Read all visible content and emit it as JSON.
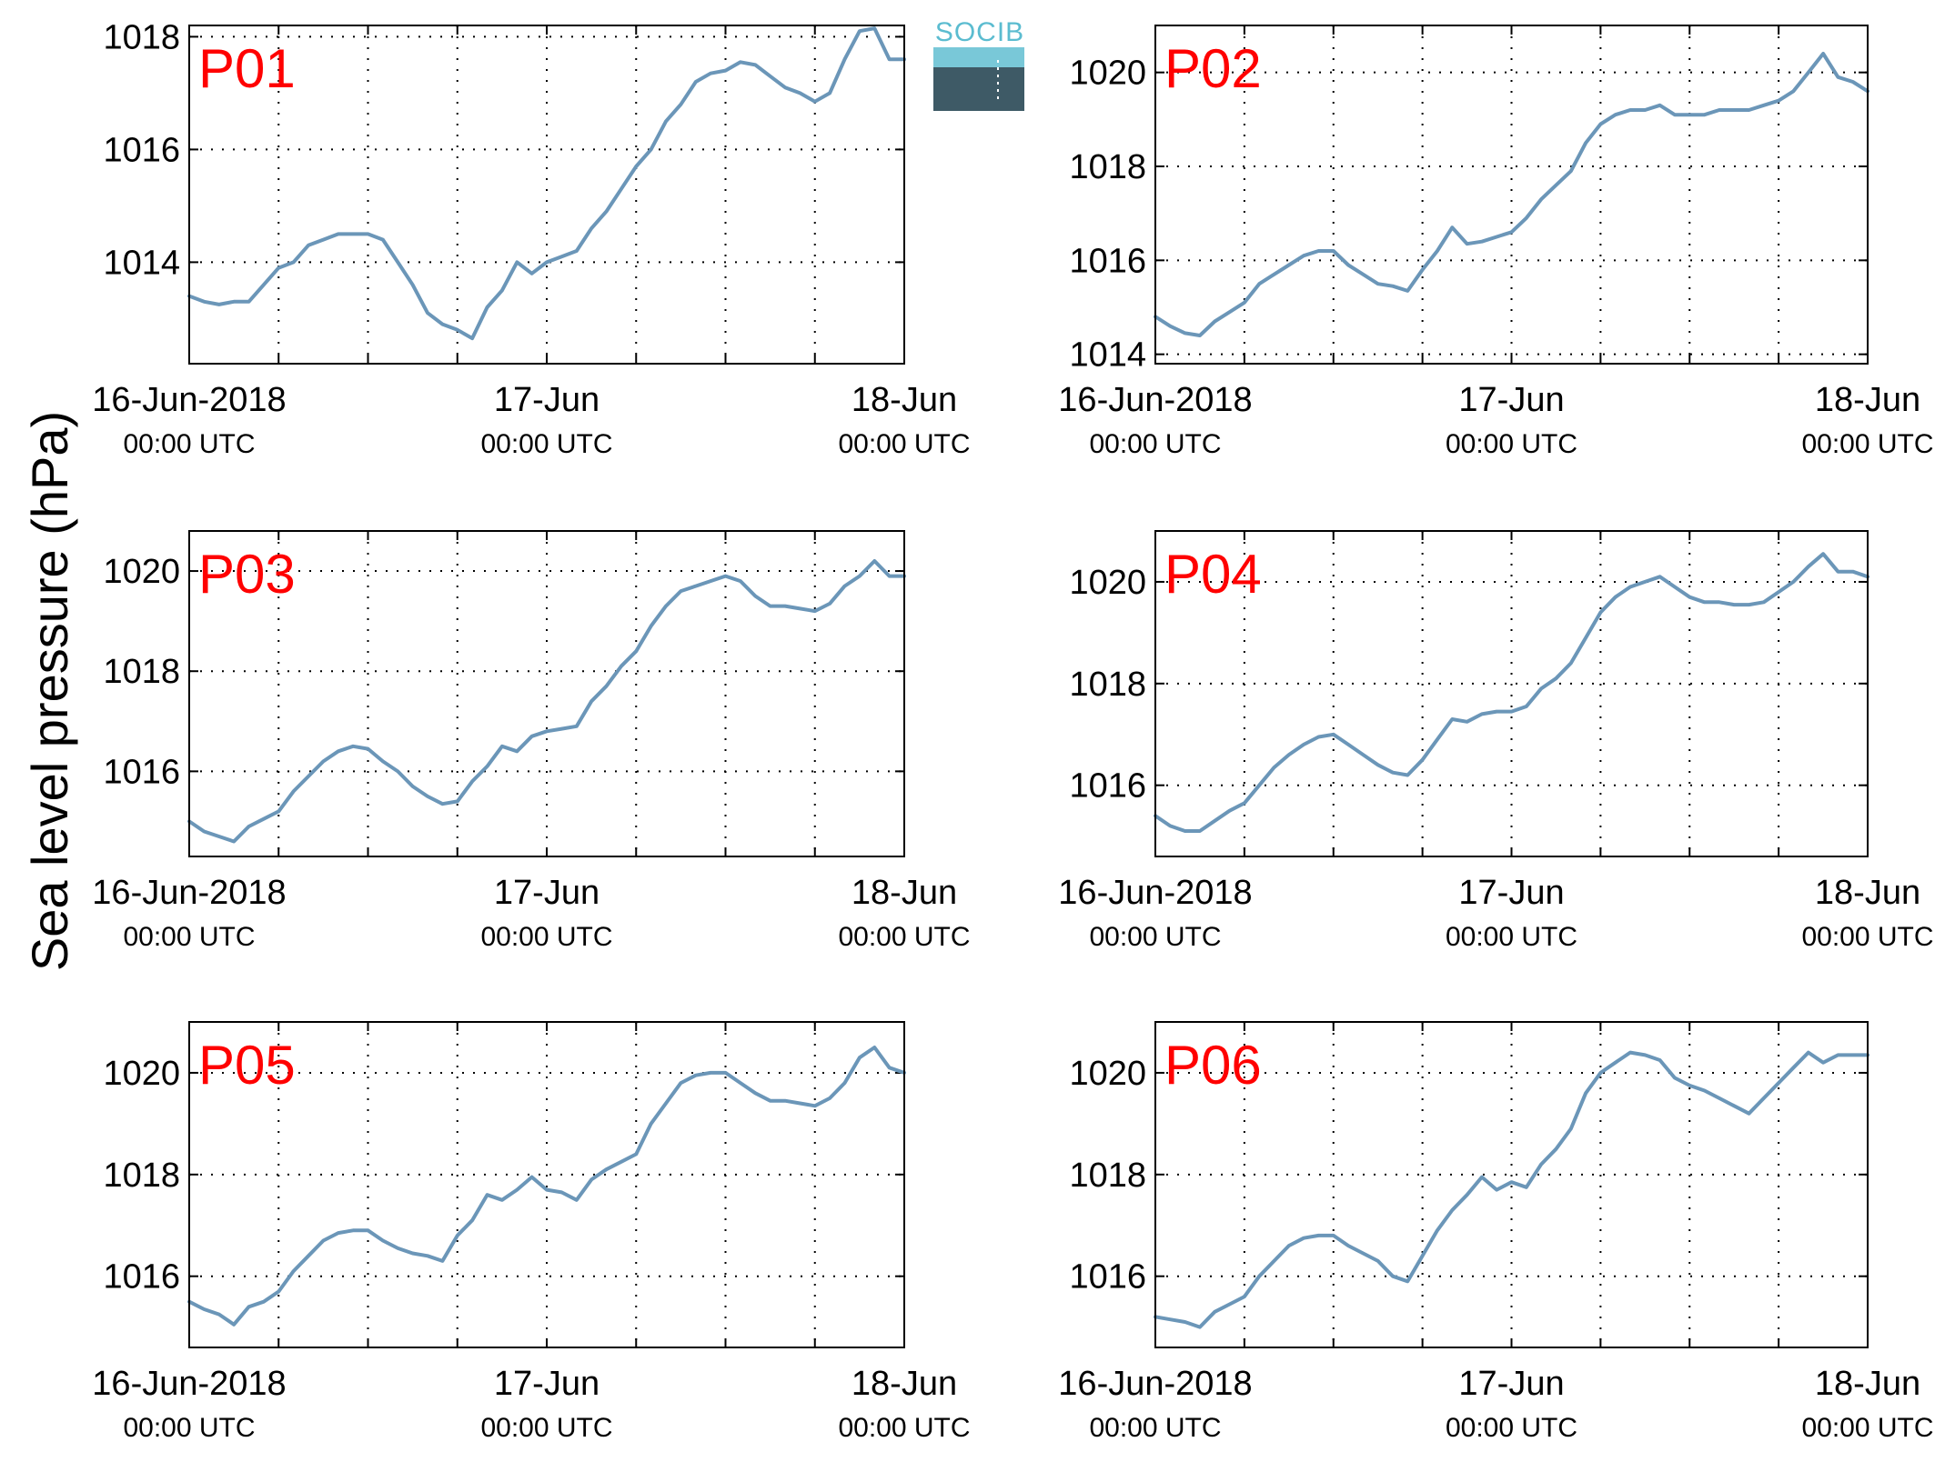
{
  "figure": {
    "ylabel": "Sea level pressure (hPa)",
    "logo_text": "SOCIB",
    "colors": {
      "series": "#6b96b8",
      "title": "#ff0000",
      "logo_text": "#5bbcd0"
    }
  },
  "chart_data": [
    {
      "type": "line",
      "title": "P01",
      "x_axis": {
        "range": [
          "2018-06-16 00:00",
          "2018-06-18 00:00"
        ],
        "tick_labels": [
          [
            "16-Jun-2018",
            "00:00 UTC"
          ],
          [
            "17-Jun",
            "00:00 UTC"
          ],
          [
            "18-Jun",
            "00:00 UTC"
          ]
        ],
        "grid_every_hours": 6
      },
      "y_axis": {
        "ylim": [
          1012.2,
          1018.2
        ],
        "ticks": [
          1014,
          1016,
          1018
        ],
        "grid": true
      },
      "series": [
        {
          "x_hours": [
            0,
            1,
            2,
            3,
            4,
            5,
            6,
            7,
            8,
            9,
            10,
            11,
            12,
            13,
            14,
            15,
            16,
            17,
            18,
            19,
            20,
            21,
            22,
            23,
            24,
            25,
            26,
            27,
            28,
            29,
            30,
            31,
            32,
            33,
            34,
            35,
            36,
            37,
            38,
            39,
            40,
            41,
            42,
            43,
            44,
            45,
            46,
            47,
            48
          ],
          "values": [
            1013.4,
            1013.3,
            1013.25,
            1013.3,
            1013.3,
            1013.6,
            1013.9,
            1014.0,
            1014.3,
            1014.4,
            1014.5,
            1014.5,
            1014.5,
            1014.4,
            1014.0,
            1013.6,
            1013.1,
            1012.9,
            1012.8,
            1012.65,
            1013.2,
            1013.5,
            1014.0,
            1013.8,
            1014.0,
            1014.1,
            1014.2,
            1014.6,
            1014.9,
            1015.3,
            1015.7,
            1016.0,
            1016.5,
            1016.8,
            1017.2,
            1017.35,
            1017.4,
            1017.55,
            1017.5,
            1017.3,
            1017.1,
            1017.0,
            1016.85,
            1017.0,
            1017.6,
            1018.1,
            1018.15,
            1017.6,
            1017.6
          ]
        }
      ]
    },
    {
      "type": "line",
      "title": "P02",
      "x_axis": {
        "range": [
          "2018-06-16 00:00",
          "2018-06-18 00:00"
        ],
        "tick_labels": [
          [
            "16-Jun-2018",
            "00:00 UTC"
          ],
          [
            "17-Jun",
            "00:00 UTC"
          ],
          [
            "18-Jun",
            "00:00 UTC"
          ]
        ],
        "grid_every_hours": 6
      },
      "y_axis": {
        "ylim": [
          1013.8,
          1021.0
        ],
        "ticks": [
          1014,
          1016,
          1018,
          1020
        ],
        "grid": true
      },
      "series": [
        {
          "x_hours": [
            0,
            1,
            2,
            3,
            4,
            5,
            6,
            7,
            8,
            9,
            10,
            11,
            12,
            13,
            14,
            15,
            16,
            17,
            18,
            19,
            20,
            21,
            22,
            23,
            24,
            25,
            26,
            27,
            28,
            29,
            30,
            31,
            32,
            33,
            34,
            35,
            36,
            37,
            38,
            39,
            40,
            41,
            42,
            43,
            44,
            45,
            46,
            47,
            48
          ],
          "values": [
            1014.8,
            1014.6,
            1014.45,
            1014.4,
            1014.7,
            1014.9,
            1015.1,
            1015.5,
            1015.7,
            1015.9,
            1016.1,
            1016.2,
            1016.2,
            1015.9,
            1015.7,
            1015.5,
            1015.45,
            1015.35,
            1015.8,
            1016.2,
            1016.7,
            1016.35,
            1016.4,
            1016.5,
            1016.6,
            1016.9,
            1017.3,
            1017.6,
            1017.9,
            1018.5,
            1018.9,
            1019.1,
            1019.2,
            1019.2,
            1019.3,
            1019.1,
            1019.1,
            1019.1,
            1019.2,
            1019.2,
            1019.2,
            1019.3,
            1019.4,
            1019.6,
            1020.0,
            1020.4,
            1019.9,
            1019.8,
            1019.6
          ]
        }
      ]
    },
    {
      "type": "line",
      "title": "P03",
      "x_axis": {
        "range": [
          "2018-06-16 00:00",
          "2018-06-18 00:00"
        ],
        "tick_labels": [
          [
            "16-Jun-2018",
            "00:00 UTC"
          ],
          [
            "17-Jun",
            "00:00 UTC"
          ],
          [
            "18-Jun",
            "00:00 UTC"
          ]
        ],
        "grid_every_hours": 6
      },
      "y_axis": {
        "ylim": [
          1014.3,
          1020.8
        ],
        "ticks": [
          1016,
          1018,
          1020
        ],
        "grid": true
      },
      "series": [
        {
          "x_hours": [
            0,
            1,
            2,
            3,
            4,
            5,
            6,
            7,
            8,
            9,
            10,
            11,
            12,
            13,
            14,
            15,
            16,
            17,
            18,
            19,
            20,
            21,
            22,
            23,
            24,
            25,
            26,
            27,
            28,
            29,
            30,
            31,
            32,
            33,
            34,
            35,
            36,
            37,
            38,
            39,
            40,
            41,
            42,
            43,
            44,
            45,
            46,
            47,
            48
          ],
          "values": [
            1015.0,
            1014.8,
            1014.7,
            1014.6,
            1014.9,
            1015.05,
            1015.2,
            1015.6,
            1015.9,
            1016.2,
            1016.4,
            1016.5,
            1016.45,
            1016.2,
            1016.0,
            1015.7,
            1015.5,
            1015.35,
            1015.4,
            1015.8,
            1016.1,
            1016.5,
            1016.4,
            1016.7,
            1016.8,
            1016.85,
            1016.9,
            1017.4,
            1017.7,
            1018.1,
            1018.4,
            1018.9,
            1019.3,
            1019.6,
            1019.7,
            1019.8,
            1019.9,
            1019.8,
            1019.5,
            1019.3,
            1019.3,
            1019.25,
            1019.2,
            1019.35,
            1019.7,
            1019.9,
            1020.2,
            1019.9,
            1019.9
          ]
        }
      ]
    },
    {
      "type": "line",
      "title": "P04",
      "x_axis": {
        "range": [
          "2018-06-16 00:00",
          "2018-06-18 00:00"
        ],
        "tick_labels": [
          [
            "16-Jun-2018",
            "00:00 UTC"
          ],
          [
            "17-Jun",
            "00:00 UTC"
          ],
          [
            "18-Jun",
            "00:00 UTC"
          ]
        ],
        "grid_every_hours": 6
      },
      "y_axis": {
        "ylim": [
          1014.6,
          1021.0
        ],
        "ticks": [
          1016,
          1018,
          1020
        ],
        "grid": true
      },
      "series": [
        {
          "x_hours": [
            0,
            1,
            2,
            3,
            4,
            5,
            6,
            7,
            8,
            9,
            10,
            11,
            12,
            13,
            14,
            15,
            16,
            17,
            18,
            19,
            20,
            21,
            22,
            23,
            24,
            25,
            26,
            27,
            28,
            29,
            30,
            31,
            32,
            33,
            34,
            35,
            36,
            37,
            38,
            39,
            40,
            41,
            42,
            43,
            44,
            45,
            46,
            47,
            48
          ],
          "values": [
            1015.4,
            1015.2,
            1015.1,
            1015.1,
            1015.3,
            1015.5,
            1015.65,
            1016.0,
            1016.35,
            1016.6,
            1016.8,
            1016.95,
            1017.0,
            1016.8,
            1016.6,
            1016.4,
            1016.25,
            1016.2,
            1016.5,
            1016.9,
            1017.3,
            1017.25,
            1017.4,
            1017.45,
            1017.45,
            1017.55,
            1017.9,
            1018.1,
            1018.4,
            1018.9,
            1019.4,
            1019.7,
            1019.9,
            1020.0,
            1020.1,
            1019.9,
            1019.7,
            1019.6,
            1019.6,
            1019.55,
            1019.55,
            1019.6,
            1019.8,
            1020.0,
            1020.3,
            1020.55,
            1020.2,
            1020.2,
            1020.1
          ]
        }
      ]
    },
    {
      "type": "line",
      "title": "P05",
      "x_axis": {
        "range": [
          "2018-06-16 00:00",
          "2018-06-18 00:00"
        ],
        "tick_labels": [
          [
            "16-Jun-2018",
            "00:00 UTC"
          ],
          [
            "17-Jun",
            "00:00 UTC"
          ],
          [
            "18-Jun",
            "00:00 UTC"
          ]
        ],
        "grid_every_hours": 6
      },
      "y_axis": {
        "ylim": [
          1014.6,
          1021.0
        ],
        "ticks": [
          1016,
          1018,
          1020
        ],
        "grid": true
      },
      "series": [
        {
          "x_hours": [
            0,
            1,
            2,
            3,
            4,
            5,
            6,
            7,
            8,
            9,
            10,
            11,
            12,
            13,
            14,
            15,
            16,
            17,
            18,
            19,
            20,
            21,
            22,
            23,
            24,
            25,
            26,
            27,
            28,
            29,
            30,
            31,
            32,
            33,
            34,
            35,
            36,
            37,
            38,
            39,
            40,
            41,
            42,
            43,
            44,
            45,
            46,
            47,
            48
          ],
          "values": [
            1015.5,
            1015.35,
            1015.25,
            1015.05,
            1015.4,
            1015.5,
            1015.7,
            1016.1,
            1016.4,
            1016.7,
            1016.85,
            1016.9,
            1016.9,
            1016.7,
            1016.55,
            1016.45,
            1016.4,
            1016.3,
            1016.8,
            1017.1,
            1017.6,
            1017.5,
            1017.7,
            1017.95,
            1017.7,
            1017.65,
            1017.5,
            1017.9,
            1018.1,
            1018.25,
            1018.4,
            1019.0,
            1019.4,
            1019.8,
            1019.95,
            1020.0,
            1020.0,
            1019.8,
            1019.6,
            1019.45,
            1019.45,
            1019.4,
            1019.35,
            1019.5,
            1019.8,
            1020.3,
            1020.5,
            1020.1,
            1020.0
          ]
        }
      ]
    },
    {
      "type": "line",
      "title": "P06",
      "x_axis": {
        "range": [
          "2018-06-16 00:00",
          "2018-06-18 00:00"
        ],
        "tick_labels": [
          [
            "16-Jun-2018",
            "00:00 UTC"
          ],
          [
            "17-Jun",
            "00:00 UTC"
          ],
          [
            "18-Jun",
            "00:00 UTC"
          ]
        ],
        "grid_every_hours": 6
      },
      "y_axis": {
        "ylim": [
          1014.6,
          1021.0
        ],
        "ticks": [
          1016,
          1018,
          1020
        ],
        "grid": true
      },
      "series": [
        {
          "x_hours": [
            0,
            1,
            2,
            3,
            4,
            5,
            6,
            7,
            8,
            9,
            10,
            11,
            12,
            13,
            14,
            15,
            16,
            17,
            18,
            19,
            20,
            21,
            22,
            23,
            24,
            25,
            26,
            27,
            28,
            29,
            30,
            31,
            32,
            33,
            34,
            35,
            36,
            37,
            38,
            39,
            40,
            41,
            42,
            43,
            44,
            45,
            46,
            47,
            48
          ],
          "values": [
            1015.2,
            1015.15,
            1015.1,
            1015.0,
            1015.3,
            1015.45,
            1015.6,
            1016.0,
            1016.3,
            1016.6,
            1016.75,
            1016.8,
            1016.8,
            1016.6,
            1016.45,
            1016.3,
            1016.0,
            1015.9,
            1016.4,
            1016.9,
            1017.3,
            1017.6,
            1017.95,
            1017.7,
            1017.85,
            1017.75,
            1018.2,
            1018.5,
            1018.9,
            1019.6,
            1020.0,
            1020.2,
            1020.4,
            1020.35,
            1020.25,
            1019.9,
            1019.75,
            1019.65,
            1019.5,
            1019.35,
            1019.2,
            1019.5,
            1019.8,
            1020.1,
            1020.4,
            1020.2,
            1020.35,
            1020.35,
            1020.35
          ]
        }
      ]
    }
  ]
}
